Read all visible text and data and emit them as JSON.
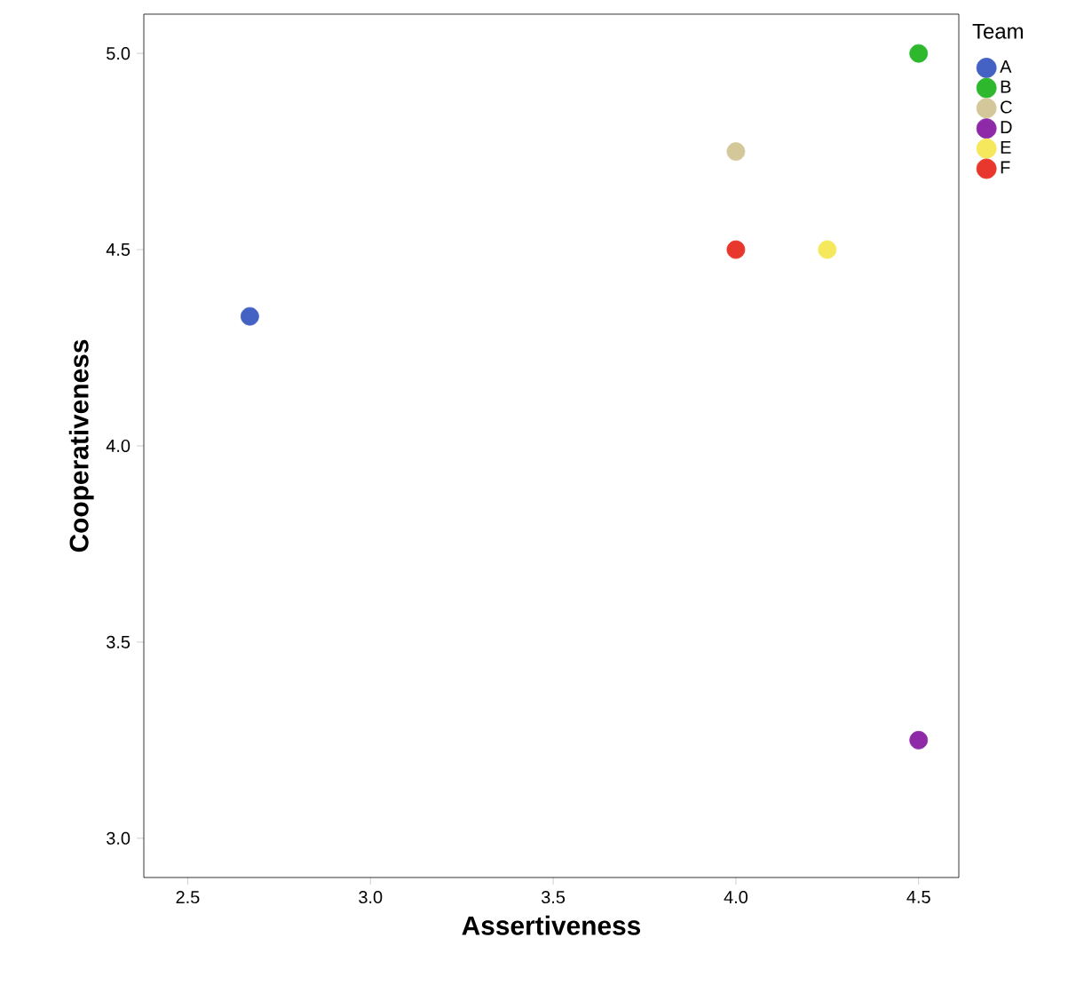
{
  "chart_data": {
    "type": "scatter",
    "xlabel": "Assertiveness",
    "ylabel": "Cooperativeness",
    "legend_title": "Team",
    "legend": "right",
    "marker": "circle",
    "grid": false,
    "xlim": [
      2.38,
      4.61
    ],
    "ylim": [
      2.9,
      5.1
    ],
    "xticks": [
      {
        "value": 2.5,
        "label": "2.5"
      },
      {
        "value": 3.0,
        "label": "3.0"
      },
      {
        "value": 3.5,
        "label": "3.5"
      },
      {
        "value": 4.0,
        "label": "4.0"
      },
      {
        "value": 4.5,
        "label": "4.5"
      }
    ],
    "yticks": [
      {
        "value": 3.0,
        "label": "3.0"
      },
      {
        "value": 3.5,
        "label": "3.5"
      },
      {
        "value": 4.0,
        "label": "4.0"
      },
      {
        "value": 4.5,
        "label": "4.5"
      },
      {
        "value": 5.0,
        "label": "5.0"
      }
    ],
    "series": [
      {
        "name": "A",
        "color": "#4462c4",
        "x": [
          2.67
        ],
        "values": [
          4.33
        ]
      },
      {
        "name": "B",
        "color": "#2db82d",
        "x": [
          4.5
        ],
        "values": [
          5.0
        ]
      },
      {
        "name": "C",
        "color": "#d4c89a",
        "x": [
          4.0
        ],
        "values": [
          4.75
        ]
      },
      {
        "name": "D",
        "color": "#8e2aa8",
        "x": [
          4.5
        ],
        "values": [
          3.25
        ]
      },
      {
        "name": "E",
        "color": "#f5e85c",
        "x": [
          4.25
        ],
        "values": [
          4.5
        ]
      },
      {
        "name": "F",
        "color": "#e8382d",
        "x": [
          4.0
        ],
        "values": [
          4.5
        ]
      }
    ]
  }
}
